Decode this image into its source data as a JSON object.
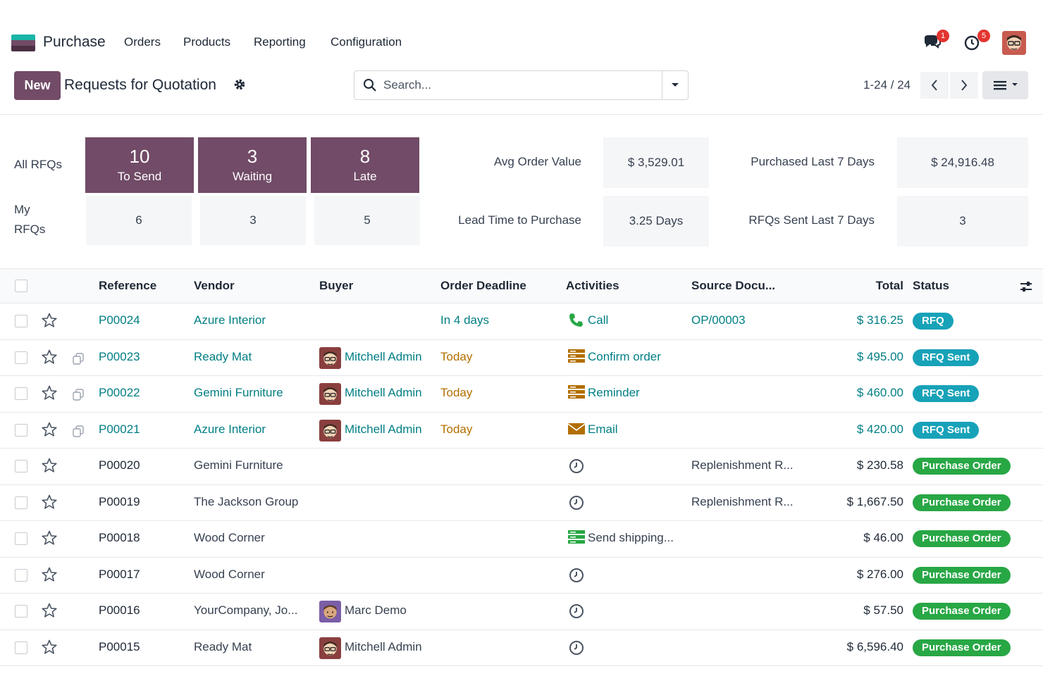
{
  "app": {
    "name": "Purchase",
    "menu": [
      "Orders",
      "Products",
      "Reporting",
      "Configuration"
    ],
    "messages_badge": "1",
    "activities_badge": "5"
  },
  "control": {
    "new_label": "New",
    "title": "Requests for Quotation",
    "search_placeholder": "Search...",
    "pager": "1-24 / 24"
  },
  "dashboard": {
    "all_rfqs_label": "All RFQs",
    "my_rfqs_label_1": "My",
    "my_rfqs_label_2": "RFQs",
    "tiles": [
      {
        "num": "10",
        "label": "To Send"
      },
      {
        "num": "3",
        "label": "Waiting"
      },
      {
        "num": "8",
        "label": "Late"
      }
    ],
    "my_values": [
      "6",
      "3",
      "5"
    ],
    "kpis": {
      "avg_order_value_label": "Avg Order Value",
      "avg_order_value": "$ 3,529.01",
      "purchased_7_label": "Purchased Last 7 Days",
      "purchased_7": "$ 24,916.48",
      "lead_time_label": "Lead Time to Purchase",
      "lead_time": "3.25 Days",
      "rfqs_sent_label": "RFQs Sent Last 7 Days",
      "rfqs_sent": "3"
    }
  },
  "table": {
    "headers": {
      "reference": "Reference",
      "vendor": "Vendor",
      "buyer": "Buyer",
      "deadline": "Order Deadline",
      "activities": "Activities",
      "source": "Source Docu...",
      "total": "Total",
      "status": "Status"
    },
    "rows": [
      {
        "ref": "P00024",
        "vendor": "Azure Interior",
        "buyer": "",
        "deadline": "In 4 days",
        "activity": "Call",
        "activity_icon": "phone-icon",
        "source": "OP/00003",
        "total": "$ 316.25",
        "status": "RFQ"
      },
      {
        "ref": "P00023",
        "vendor": "Ready Mat",
        "buyer": "Mitchell Admin",
        "deadline": "Today",
        "activity": "Confirm order",
        "activity_icon": "tasks-icon",
        "source": "",
        "total": "$ 495.00",
        "status": "RFQ Sent"
      },
      {
        "ref": "P00022",
        "vendor": "Gemini Furniture",
        "buyer": "Mitchell Admin",
        "deadline": "Today",
        "activity": "Reminder",
        "activity_icon": "tasks-icon",
        "source": "",
        "total": "$ 460.00",
        "status": "RFQ Sent"
      },
      {
        "ref": "P00021",
        "vendor": "Azure Interior",
        "buyer": "Mitchell Admin",
        "deadline": "Today",
        "activity": "Email",
        "activity_icon": "envelope-icon",
        "source": "",
        "total": "$ 420.00",
        "status": "RFQ Sent"
      },
      {
        "ref": "P00020",
        "vendor": "Gemini Furniture",
        "buyer": "",
        "deadline": "",
        "activity": "",
        "activity_icon": "clock-icon",
        "source": "Replenishment R...",
        "total": "$ 230.58",
        "status": "Purchase Order"
      },
      {
        "ref": "P00019",
        "vendor": "The Jackson Group",
        "buyer": "",
        "deadline": "",
        "activity": "",
        "activity_icon": "clock-icon",
        "source": "Replenishment R...",
        "total": "$ 1,667.50",
        "status": "Purchase Order"
      },
      {
        "ref": "P00018",
        "vendor": "Wood Corner",
        "buyer": "",
        "deadline": "",
        "activity": "Send shipping...",
        "activity_icon": "tasks-icon",
        "source": "",
        "total": "$ 46.00",
        "status": "Purchase Order"
      },
      {
        "ref": "P00017",
        "vendor": "Wood Corner",
        "buyer": "",
        "deadline": "",
        "activity": "",
        "activity_icon": "clock-icon",
        "source": "",
        "total": "$ 276.00",
        "status": "Purchase Order"
      },
      {
        "ref": "P00016",
        "vendor": "YourCompany, Jo...",
        "buyer": "Marc Demo",
        "deadline": "",
        "activity": "",
        "activity_icon": "clock-icon",
        "source": "",
        "total": "$ 57.50",
        "status": "Purchase Order"
      },
      {
        "ref": "P00015",
        "vendor": "Ready Mat",
        "buyer": "Mitchell Admin",
        "deadline": "",
        "activity": "",
        "activity_icon": "clock-icon",
        "source": "",
        "total": "$ 6,596.40",
        "status": "Purchase Order"
      }
    ]
  },
  "colors": {
    "brand": "#714b67",
    "link": "#017e84",
    "warning": "#b26f00",
    "tag_blue": "#17a2b8",
    "tag_green": "#28a745"
  }
}
